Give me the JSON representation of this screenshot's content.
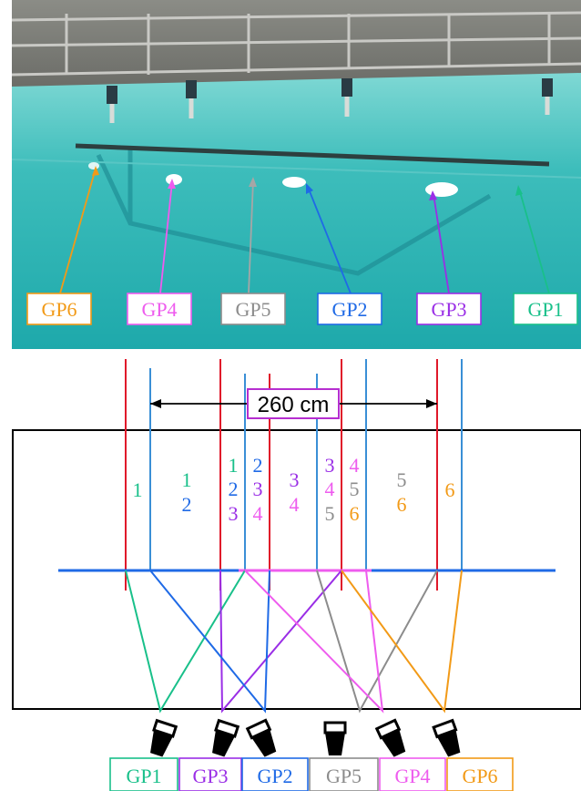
{
  "colors": {
    "GP1": "#19c08a",
    "GP2": "#1f6ae6",
    "GP3": "#9a2ee6",
    "GP4": "#ee5cee",
    "GP5": "#8c8c8c",
    "GP6": "#f29a17",
    "red_line": "#e0192a",
    "blue_line": "#3a8fd6",
    "water": "#3cbcbc"
  },
  "photo_labels": [
    "GP6",
    "GP4",
    "GP5",
    "GP2",
    "GP3",
    "GP1"
  ],
  "dimension": {
    "label": "260 cm"
  },
  "zones": [
    {
      "top": "1",
      "bottom": ""
    },
    {
      "top": "1",
      "bottom": "2"
    },
    {
      "top": "1",
      "mid": "2",
      "bottom": "3"
    },
    {
      "top": "2",
      "mid": "3",
      "bottom": "4"
    },
    {
      "top": "3",
      "bottom": "4"
    },
    {
      "top": "3",
      "mid": "4",
      "bottom": "5"
    },
    {
      "top": "4",
      "mid": "5",
      "bottom": "6"
    },
    {
      "top": "5",
      "bottom": "6"
    },
    {
      "top": "6",
      "bottom": ""
    }
  ],
  "bottom_labels": [
    "GP1",
    "GP3",
    "GP2",
    "GP5",
    "GP4",
    "GP6"
  ],
  "icons": {
    "lamp": "projector-lamp-icon"
  }
}
